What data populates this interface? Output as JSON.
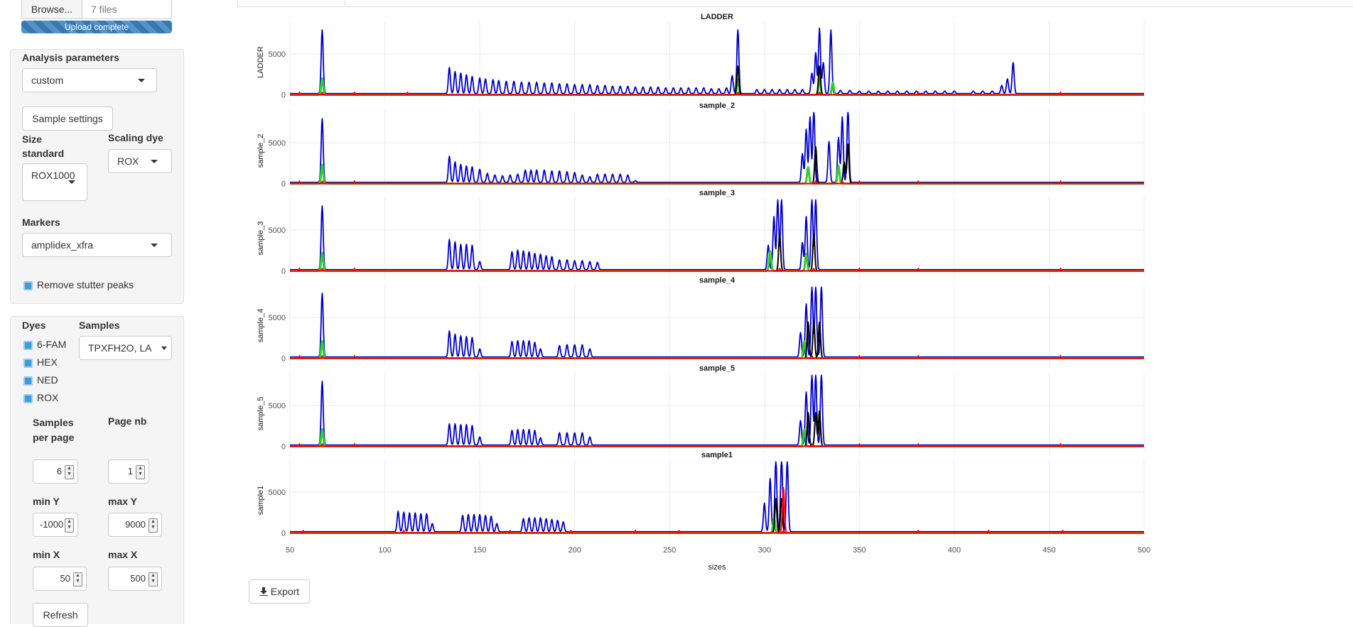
{
  "upload": {
    "browse_label": "Browse...",
    "file_count": "7 files",
    "status": "Upload complete"
  },
  "analysis": {
    "title": "Analysis parameters",
    "preset": "custom",
    "sample_settings_label": "Sample settings",
    "size_standard_label": "Size standard",
    "size_standard_value": "ROX1000",
    "scaling_dye_label": "Scaling dye",
    "scaling_dye_value": "ROX",
    "markers_label": "Markers",
    "markers_value": "amplidex_xfra",
    "remove_stutter_label": "Remove stutter peaks",
    "remove_stutter_checked": true
  },
  "display": {
    "dyes_label": "Dyes",
    "dyes": [
      {
        "label": "6-FAM",
        "checked": true
      },
      {
        "label": "HEX",
        "checked": true
      },
      {
        "label": "NED",
        "checked": true
      },
      {
        "label": "ROX",
        "checked": true
      }
    ],
    "samples_label": "Samples",
    "samples_value": "TPXFH2O, LA",
    "samples_per_page_label": "Samples per page",
    "samples_per_page_value": "6",
    "page_nb_label": "Page nb",
    "page_nb_value": "1",
    "min_y_label": "min Y",
    "min_y_value": "-1000",
    "max_y_label": "max Y",
    "max_y_value": "9000",
    "min_x_label": "min X",
    "min_x_value": "50",
    "max_x_label": "max X",
    "max_x_value": "500",
    "refresh_label": "Refresh"
  },
  "export_label": "Export",
  "colors": {
    "accent": "#337ab7",
    "checkbox": "#3d9cdb",
    "trace_blue": "#0000cc",
    "trace_red": "#ff0000",
    "trace_black": "#000000",
    "trace_green": "#33cc33"
  },
  "chart_data": {
    "type": "line",
    "xlabel": "sizes",
    "xticks": [
      50,
      100,
      150,
      200,
      250,
      300,
      350,
      400,
      450,
      500
    ],
    "xlim": [
      50,
      500
    ],
    "ytick": 5000,
    "grid": true,
    "panels": [
      {
        "title": "LADDER",
        "ylabel": "LADDER",
        "ylim": [
          -1000,
          9000
        ],
        "blue_peaks": [
          [
            67,
            7800
          ],
          [
            134,
            3200
          ],
          [
            137,
            2700
          ],
          [
            140,
            2500
          ],
          [
            143,
            2300
          ],
          [
            146,
            2100
          ],
          [
            150,
            1900
          ],
          [
            153,
            1800
          ],
          [
            157,
            1700
          ],
          [
            160,
            1600
          ],
          [
            164,
            1500
          ],
          [
            168,
            1500
          ],
          [
            172,
            1400
          ],
          [
            176,
            1400
          ],
          [
            180,
            1400
          ],
          [
            184,
            1300
          ],
          [
            188,
            1300
          ],
          [
            192,
            1200
          ],
          [
            196,
            1200
          ],
          [
            200,
            1100
          ],
          [
            204,
            1100
          ],
          [
            208,
            1100
          ],
          [
            212,
            1000
          ],
          [
            216,
            1000
          ],
          [
            220,
            900
          ],
          [
            224,
            900
          ],
          [
            228,
            900
          ],
          [
            232,
            800
          ],
          [
            236,
            800
          ],
          [
            240,
            800
          ],
          [
            244,
            800
          ],
          [
            248,
            700
          ],
          [
            252,
            700
          ],
          [
            256,
            700
          ],
          [
            260,
            700
          ],
          [
            264,
            700
          ],
          [
            268,
            700
          ],
          [
            272,
            600
          ],
          [
            276,
            600
          ],
          [
            280,
            700
          ],
          [
            283,
            2200
          ],
          [
            286,
            7800
          ],
          [
            296,
            500
          ],
          [
            300,
            500
          ],
          [
            304,
            500
          ],
          [
            308,
            500
          ],
          [
            312,
            500
          ],
          [
            316,
            500
          ],
          [
            320,
            500
          ],
          [
            325,
            2500
          ],
          [
            327,
            5000
          ],
          [
            329,
            8000
          ],
          [
            331,
            3800
          ],
          [
            335,
            7800
          ],
          [
            340,
            400
          ],
          [
            345,
            400
          ],
          [
            350,
            300
          ],
          [
            355,
            300
          ],
          [
            360,
            300
          ],
          [
            365,
            300
          ],
          [
            370,
            300
          ],
          [
            375,
            300
          ],
          [
            380,
            300
          ],
          [
            385,
            300
          ],
          [
            390,
            300
          ],
          [
            395,
            300
          ],
          [
            400,
            300
          ],
          [
            410,
            300
          ],
          [
            415,
            300
          ],
          [
            420,
            300
          ],
          [
            425,
            1000
          ],
          [
            428,
            1800
          ],
          [
            431,
            3800
          ]
        ],
        "green_peaks": [
          [
            67,
            2000
          ],
          [
            286,
            1900
          ],
          [
            329,
            2100
          ],
          [
            336,
            1500
          ]
        ],
        "black_peaks": [
          [
            286,
            3500
          ],
          [
            329,
            3500
          ]
        ],
        "red_markers": [
          55,
          67,
          84,
          112,
          286,
          329,
          381,
          456
        ]
      },
      {
        "title": "sample_2",
        "ylabel": "sample_2",
        "ylim": [
          -1000,
          9000
        ],
        "blue_peaks": [
          [
            67,
            7800
          ],
          [
            134,
            3200
          ],
          [
            137,
            2500
          ],
          [
            140,
            2200
          ],
          [
            143,
            2000
          ],
          [
            146,
            1900
          ],
          [
            150,
            1600
          ],
          [
            154,
            1100
          ],
          [
            158,
            900
          ],
          [
            162,
            800
          ],
          [
            166,
            900
          ],
          [
            170,
            1000
          ],
          [
            174,
            1500
          ],
          [
            177,
            1500
          ],
          [
            180,
            1500
          ],
          [
            184,
            1500
          ],
          [
            188,
            1400
          ],
          [
            192,
            1400
          ],
          [
            196,
            1300
          ],
          [
            200,
            1200
          ],
          [
            204,
            900
          ],
          [
            208,
            700
          ],
          [
            212,
            1000
          ],
          [
            216,
            1000
          ],
          [
            220,
            1000
          ],
          [
            224,
            1000
          ],
          [
            228,
            900
          ],
          [
            232,
            200
          ],
          [
            320,
            3500
          ],
          [
            322,
            6500
          ],
          [
            324,
            8000
          ],
          [
            326,
            9000
          ],
          [
            334,
            5000
          ],
          [
            339,
            5500
          ],
          [
            341,
            8000
          ],
          [
            344,
            9000
          ]
        ],
        "green_peaks": [
          [
            67,
            2300
          ],
          [
            323,
            2000
          ],
          [
            339,
            2200
          ]
        ],
        "black_peaks": [
          [
            327,
            4500
          ],
          [
            342,
            2600
          ],
          [
            344,
            4800
          ]
        ],
        "red_markers": [
          55,
          67,
          84,
          327,
          341,
          350,
          381,
          456
        ]
      },
      {
        "title": "sample_3",
        "ylabel": "sample_3",
        "ylim": [
          -1000,
          9000
        ],
        "blue_peaks": [
          [
            67,
            7800
          ],
          [
            134,
            3700
          ],
          [
            137,
            3400
          ],
          [
            140,
            3100
          ],
          [
            143,
            3100
          ],
          [
            146,
            3000
          ],
          [
            150,
            1000
          ],
          [
            167,
            2200
          ],
          [
            170,
            2400
          ],
          [
            173,
            2300
          ],
          [
            176,
            2200
          ],
          [
            179,
            2000
          ],
          [
            182,
            1900
          ],
          [
            185,
            1700
          ],
          [
            188,
            1600
          ],
          [
            192,
            1200
          ],
          [
            196,
            1200
          ],
          [
            200,
            1100
          ],
          [
            204,
            1100
          ],
          [
            208,
            1000
          ],
          [
            212,
            900
          ],
          [
            302,
            3000
          ],
          [
            305,
            6500
          ],
          [
            307,
            8600
          ],
          [
            309,
            8600
          ],
          [
            320,
            3300
          ],
          [
            322,
            6500
          ],
          [
            325,
            8600
          ],
          [
            327,
            8600
          ]
        ],
        "green_peaks": [
          [
            67,
            2200
          ],
          [
            303,
            2400
          ],
          [
            322,
            2100
          ]
        ],
        "black_peaks": [
          [
            308,
            4400
          ],
          [
            326,
            4400
          ]
        ],
        "red_markers": [
          55,
          67,
          84,
          308,
          326,
          350,
          381,
          456
        ]
      },
      {
        "title": "sample_4",
        "ylabel": "sample_4",
        "ylim": [
          -1000,
          9000
        ],
        "blue_peaks": [
          [
            67,
            7800
          ],
          [
            134,
            3200
          ],
          [
            137,
            2800
          ],
          [
            140,
            2600
          ],
          [
            143,
            2500
          ],
          [
            146,
            2400
          ],
          [
            150,
            1000
          ],
          [
            167,
            1900
          ],
          [
            170,
            2000
          ],
          [
            173,
            2000
          ],
          [
            176,
            2000
          ],
          [
            179,
            1800
          ],
          [
            182,
            1000
          ],
          [
            192,
            1400
          ],
          [
            196,
            1500
          ],
          [
            200,
            1500
          ],
          [
            204,
            1500
          ],
          [
            208,
            1000
          ],
          [
            319,
            3000
          ],
          [
            322,
            6500
          ],
          [
            325,
            8600
          ],
          [
            327,
            8700
          ],
          [
            330,
            8700
          ]
        ],
        "green_peaks": [
          [
            67,
            2100
          ],
          [
            321,
            2100
          ]
        ],
        "black_peaks": [
          [
            323,
            4400
          ],
          [
            326,
            4400
          ],
          [
            329,
            4400
          ]
        ],
        "red_markers": [
          55,
          67,
          84,
          325,
          350,
          381,
          456
        ]
      },
      {
        "title": "sample_5",
        "ylabel": "sample_5",
        "ylim": [
          -1000,
          9000
        ],
        "blue_peaks": [
          [
            67,
            7800
          ],
          [
            134,
            2600
          ],
          [
            137,
            2600
          ],
          [
            140,
            2500
          ],
          [
            143,
            2500
          ],
          [
            146,
            2400
          ],
          [
            150,
            1000
          ],
          [
            167,
            1800
          ],
          [
            170,
            1900
          ],
          [
            173,
            1900
          ],
          [
            176,
            1900
          ],
          [
            179,
            1800
          ],
          [
            182,
            900
          ],
          [
            192,
            1500
          ],
          [
            196,
            1500
          ],
          [
            200,
            1500
          ],
          [
            204,
            1500
          ],
          [
            208,
            1000
          ],
          [
            319,
            3000
          ],
          [
            322,
            6500
          ],
          [
            325,
            8600
          ],
          [
            327,
            8700
          ],
          [
            330,
            8700
          ]
        ],
        "green_peaks": [
          [
            67,
            2100
          ],
          [
            321,
            2100
          ]
        ],
        "black_peaks": [
          [
            323,
            4100
          ],
          [
            327,
            4100
          ],
          [
            329,
            4300
          ]
        ],
        "red_markers": [
          55,
          67,
          84,
          325,
          350,
          381,
          456
        ]
      },
      {
        "title": "sample1",
        "ylabel": "sample1",
        "ylim": [
          -1000,
          9000
        ],
        "blue_peaks": [
          [
            107,
            2500
          ],
          [
            110,
            2400
          ],
          [
            113,
            2300
          ],
          [
            116,
            2300
          ],
          [
            119,
            2200
          ],
          [
            122,
            2200
          ],
          [
            125,
            1000
          ],
          [
            141,
            2000
          ],
          [
            144,
            2100
          ],
          [
            147,
            2100
          ],
          [
            150,
            2100
          ],
          [
            153,
            2000
          ],
          [
            156,
            1900
          ],
          [
            159,
            1000
          ],
          [
            173,
            1600
          ],
          [
            176,
            1700
          ],
          [
            179,
            1700
          ],
          [
            182,
            1700
          ],
          [
            185,
            1600
          ],
          [
            188,
            1500
          ],
          [
            191,
            1400
          ],
          [
            194,
            1200
          ],
          [
            300,
            3500
          ],
          [
            303,
            6500
          ],
          [
            306,
            8800
          ],
          [
            309,
            9000
          ],
          [
            312,
            8800
          ]
        ],
        "green_peaks": [
          [
            305,
            1800
          ]
        ],
        "black_peaks": [
          [
            306,
            4200
          ],
          [
            309,
            4200
          ]
        ],
        "red_peaks": [
          [
            310,
            5500
          ]
        ],
        "red_markers": [
          57,
          110,
          166,
          198,
          232,
          255,
          310,
          381,
          418,
          457
        ]
      }
    ]
  }
}
